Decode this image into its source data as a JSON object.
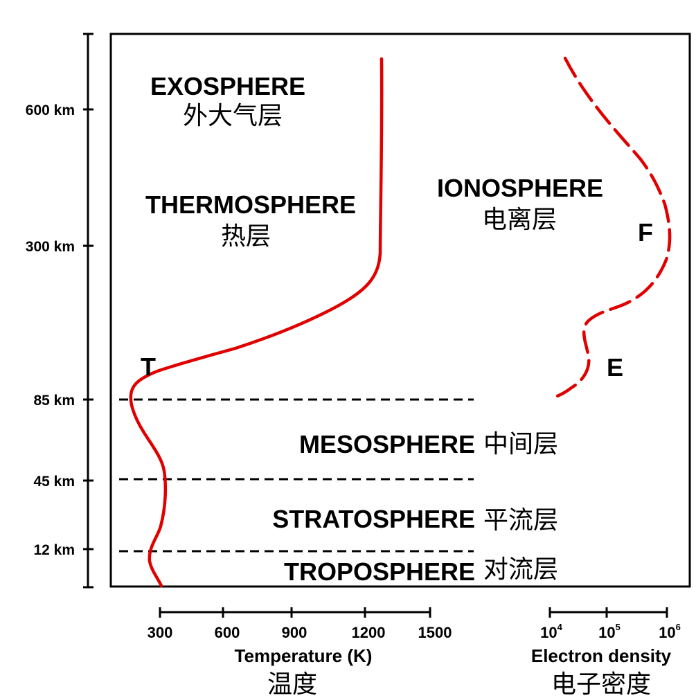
{
  "altitude_axis": {
    "ticks": [
      "600 km",
      "300 km",
      "85 km",
      "45 km",
      "12 km"
    ]
  },
  "layers": {
    "exosphere": {
      "en": "EXOSPHERE",
      "zh": "外大气层"
    },
    "thermosphere": {
      "en": "THERMOSPHERE",
      "zh": "热层"
    },
    "ionosphere": {
      "en": "IONOSPHERE",
      "zh": "电离层"
    },
    "mesosphere": {
      "en": "MESOSPHERE",
      "zh": "中间层"
    },
    "stratosphere": {
      "en": "STRATOSPHERE",
      "zh": "平流层"
    },
    "troposphere": {
      "en": "TROPOSPHERE",
      "zh": "对流层"
    }
  },
  "markers": {
    "t": "T",
    "f": "F",
    "e": "E"
  },
  "temperature_axis": {
    "ticks": [
      "300",
      "600",
      "900",
      "1200",
      "1500"
    ],
    "title": "Temperature (K)",
    "title_zh": "温度"
  },
  "density_axis": {
    "tick_base": "10",
    "tick_exponents": [
      "4",
      "5",
      "6"
    ],
    "title": "Electron density",
    "title_zh": "电子密度"
  },
  "colors": {
    "curve": "#e00000",
    "lines": "#000000",
    "background": "#ffffff"
  },
  "curves": [
    {
      "name": "temperature",
      "style": "solid"
    },
    {
      "name": "electron-density",
      "style": "dashed"
    }
  ]
}
